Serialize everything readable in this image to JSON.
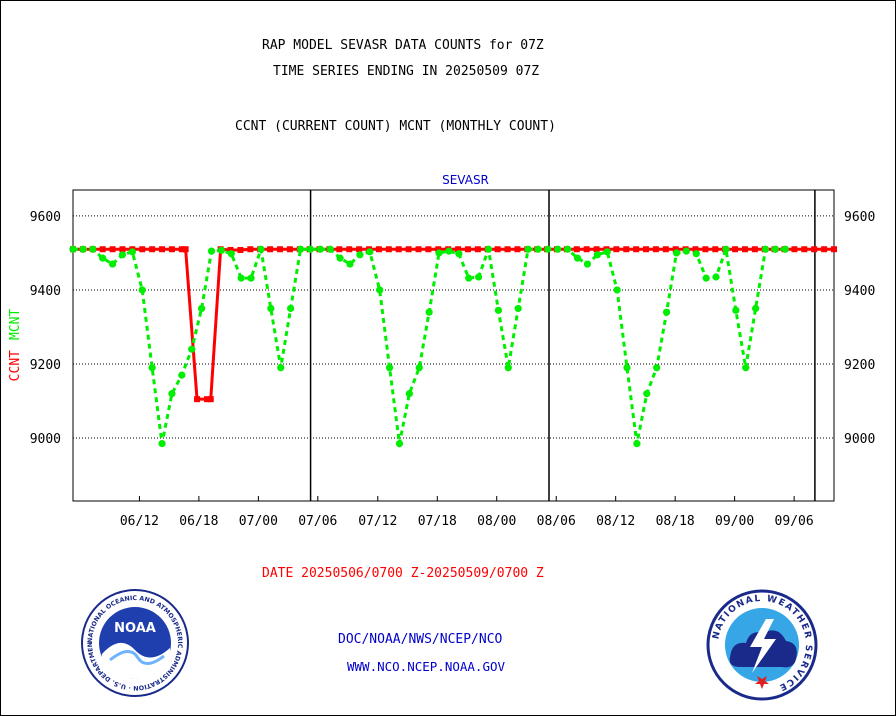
{
  "title_line1": "RAP MODEL SEVASR DATA COUNTS for 07Z",
  "title_line2": "TIME SERIES ENDING IN 20250509 07Z",
  "title_line3": "CCNT (CURRENT COUNT) MCNT (MONTHLY COUNT)",
  "date_range": "DATE 20250506/0700 Z-20250509/0700 Z",
  "footer_org": "DOC/NOAA/NWS/NCEP/NCO",
  "footer_url": "WWW.NCO.NCEP.NOAA.GOV",
  "logos": {
    "noaa_text": "NOAA",
    "noaa_ring": "NATIONAL OCEANIC AND ATMOSPHERIC ADMINISTRATION · U.S. DEPARTMENT OF COMMERCE",
    "nws_ring": "NATIONAL WEATHER SERVICE"
  },
  "colors": {
    "ccnt": "#ff0000",
    "mcnt": "#00ee00",
    "title_blue": "#0000cc"
  },
  "chart_data": {
    "type": "line",
    "title": "SEVASR",
    "ylabel_parts": [
      {
        "text": "CCNT",
        "color": "#ff0000"
      },
      {
        "text": "MCNT",
        "color": "#00ee00"
      }
    ],
    "ylim": [
      8830,
      9670
    ],
    "yticks": [
      9000,
      9200,
      9400,
      9600
    ],
    "xlim": [
      0,
      100
    ],
    "xticks": [
      {
        "x": 8.73,
        "label": "06/12"
      },
      {
        "x": 16.54,
        "label": "06/18"
      },
      {
        "x": 24.36,
        "label": "07/00"
      },
      {
        "x": 32.17,
        "label": "07/06"
      },
      {
        "x": 40.05,
        "label": "07/12"
      },
      {
        "x": 47.87,
        "label": "07/18"
      },
      {
        "x": 55.68,
        "label": "08/00"
      },
      {
        "x": 63.5,
        "label": "08/06"
      },
      {
        "x": 71.31,
        "label": "08/12"
      },
      {
        "x": 79.13,
        "label": "08/18"
      },
      {
        "x": 86.94,
        "label": "09/00"
      },
      {
        "x": 94.76,
        "label": "09/06"
      }
    ],
    "day_lines": [
      31.22,
      62.55,
      97.49
    ],
    "grid": true,
    "series": [
      {
        "name": "CCNT",
        "color": "#ff0000",
        "marker": "square",
        "dash": false,
        "points": [
          [
            0,
            9510
          ],
          [
            1.3,
            9510
          ],
          [
            2.6,
            9510
          ],
          [
            3.9,
            9510
          ],
          [
            5.2,
            9510
          ],
          [
            6.5,
            9510
          ],
          [
            7.8,
            9510
          ],
          [
            9.1,
            9510
          ],
          [
            10.4,
            9510
          ],
          [
            11.7,
            9510
          ],
          [
            13,
            9510
          ],
          [
            14.3,
            9510
          ],
          [
            14.8,
            9510
          ],
          [
            16.3,
            9105
          ],
          [
            17.6,
            9105
          ],
          [
            18.1,
            9105
          ],
          [
            19.4,
            9510
          ],
          [
            20.7,
            9508
          ],
          [
            22,
            9508
          ],
          [
            23.3,
            9510
          ],
          [
            24.6,
            9510
          ],
          [
            25.9,
            9510
          ],
          [
            27.2,
            9510
          ],
          [
            28.5,
            9510
          ],
          [
            29.8,
            9510
          ],
          [
            31.1,
            9510
          ],
          [
            32.4,
            9510
          ],
          [
            33.7,
            9510
          ],
          [
            35,
            9510
          ],
          [
            36.3,
            9510
          ],
          [
            37.6,
            9510
          ],
          [
            38.9,
            9510
          ],
          [
            40.2,
            9510
          ],
          [
            41.5,
            9510
          ],
          [
            42.8,
            9510
          ],
          [
            44.1,
            9510
          ],
          [
            45.4,
            9510
          ],
          [
            46.7,
            9510
          ],
          [
            48,
            9510
          ],
          [
            49.3,
            9510
          ],
          [
            50.6,
            9510
          ],
          [
            51.9,
            9510
          ],
          [
            53.2,
            9510
          ],
          [
            54.5,
            9510
          ],
          [
            55.8,
            9510
          ],
          [
            57.1,
            9510
          ],
          [
            58.4,
            9510
          ],
          [
            59.7,
            9510
          ],
          [
            61,
            9510
          ],
          [
            62.3,
            9510
          ],
          [
            63.6,
            9510
          ],
          [
            64.9,
            9510
          ],
          [
            66.2,
            9510
          ],
          [
            67.5,
            9510
          ],
          [
            68.8,
            9510
          ],
          [
            70.1,
            9510
          ],
          [
            71.4,
            9510
          ],
          [
            72.7,
            9510
          ],
          [
            74,
            9510
          ],
          [
            75.3,
            9510
          ],
          [
            76.6,
            9510
          ],
          [
            77.9,
            9510
          ],
          [
            79.2,
            9510
          ],
          [
            80.5,
            9510
          ],
          [
            81.8,
            9510
          ],
          [
            83.1,
            9510
          ],
          [
            84.4,
            9510
          ],
          [
            85.7,
            9510
          ],
          [
            87,
            9510
          ],
          [
            88.3,
            9510
          ],
          [
            89.6,
            9510
          ],
          [
            90.9,
            9510
          ],
          [
            92.2,
            9510
          ],
          [
            93.5,
            9510
          ],
          [
            94.8,
            9510
          ],
          [
            96.1,
            9510
          ],
          [
            97.4,
            9510
          ],
          [
            98.7,
            9510
          ],
          [
            100,
            9510
          ]
        ]
      },
      {
        "name": "MCNT",
        "color": "#00ee00",
        "marker": "circle",
        "dash": true,
        "points": [
          [
            0,
            9510
          ],
          [
            1.3,
            9510
          ],
          [
            2.6,
            9510
          ],
          [
            3.9,
            9486
          ],
          [
            5.2,
            9470
          ],
          [
            6.5,
            9495
          ],
          [
            7.8,
            9503
          ],
          [
            9.1,
            9400
          ],
          [
            10.4,
            9190
          ],
          [
            11.7,
            8985
          ],
          [
            13,
            9120
          ],
          [
            14.3,
            9170
          ],
          [
            15.6,
            9240
          ],
          [
            16.9,
            9350
          ],
          [
            18.2,
            9505
          ],
          [
            19.5,
            9507
          ],
          [
            20.8,
            9498
          ],
          [
            22.1,
            9432
          ],
          [
            23.4,
            9432
          ],
          [
            24.7,
            9510
          ],
          [
            26,
            9350
          ],
          [
            27.3,
            9190
          ],
          [
            28.6,
            9350
          ],
          [
            29.9,
            9510
          ],
          [
            31.2,
            9510
          ],
          [
            32.5,
            9510
          ],
          [
            33.8,
            9510
          ],
          [
            35.1,
            9486
          ],
          [
            36.4,
            9470
          ],
          [
            37.7,
            9495
          ],
          [
            39,
            9503
          ],
          [
            40.3,
            9400
          ],
          [
            41.6,
            9190
          ],
          [
            42.9,
            8985
          ],
          [
            44.2,
            9120
          ],
          [
            45.5,
            9190
          ],
          [
            46.8,
            9340
          ],
          [
            48.1,
            9500
          ],
          [
            49.4,
            9505
          ],
          [
            50.7,
            9498
          ],
          [
            52,
            9432
          ],
          [
            53.3,
            9435
          ],
          [
            54.6,
            9510
          ],
          [
            55.9,
            9345
          ],
          [
            57.2,
            9190
          ],
          [
            58.5,
            9350
          ],
          [
            59.8,
            9510
          ],
          [
            61.1,
            9510
          ],
          [
            62.4,
            9510
          ],
          [
            63.7,
            9510
          ],
          [
            65,
            9510
          ],
          [
            66.3,
            9486
          ],
          [
            67.6,
            9470
          ],
          [
            68.9,
            9495
          ],
          [
            70.2,
            9503
          ],
          [
            71.5,
            9400
          ],
          [
            72.8,
            9190
          ],
          [
            74.1,
            8985
          ],
          [
            75.4,
            9120
          ],
          [
            76.7,
            9190
          ],
          [
            78,
            9340
          ],
          [
            79.3,
            9500
          ],
          [
            80.6,
            9505
          ],
          [
            81.9,
            9498
          ],
          [
            83.2,
            9432
          ],
          [
            84.5,
            9435
          ],
          [
            85.8,
            9510
          ],
          [
            87.1,
            9345
          ],
          [
            88.4,
            9190
          ],
          [
            89.7,
            9350
          ],
          [
            91,
            9510
          ],
          [
            92.3,
            9510
          ],
          [
            93.6,
            9510
          ]
        ]
      }
    ]
  }
}
